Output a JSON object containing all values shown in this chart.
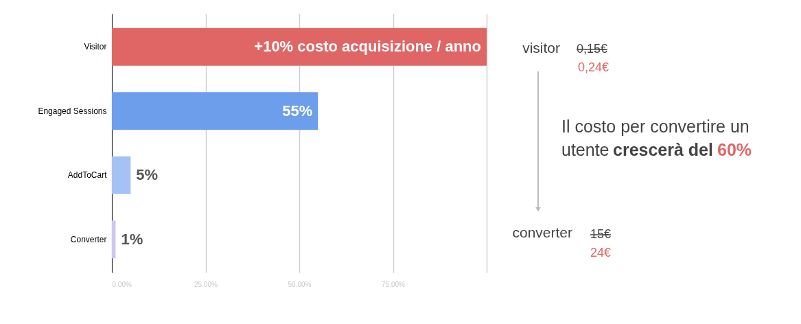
{
  "chart_data": {
    "type": "bar",
    "orientation": "horizontal",
    "categories": [
      "Visitor",
      "Engaged Sessions",
      "AddToCart",
      "Converter"
    ],
    "values": [
      100,
      55,
      5,
      1
    ],
    "colors": [
      "#e06666",
      "#6d9eeb",
      "#a4c2f4",
      "#cdc8f2"
    ],
    "value_labels": [
      null,
      "55%",
      "5%",
      "1%"
    ],
    "xlim": [
      0,
      100
    ],
    "xticks": [
      {
        "value": 0,
        "label": "0.00%"
      },
      {
        "value": 25,
        "label": "25.00%"
      },
      {
        "value": 50,
        "label": "50.00%"
      },
      {
        "value": 75,
        "label": "75.00%"
      },
      {
        "value": 100,
        "label": null
      }
    ],
    "grid": "x",
    "annotations": [
      {
        "text": "+10% costo acquisizione / anno",
        "x": 100,
        "y": "Visitor"
      },
      "visitor",
      "0,15€",
      "0,24€",
      "Il costo per convertire un",
      "utente",
      "crescerà del",
      "60%",
      "converter",
      "15€",
      "24€"
    ]
  }
}
